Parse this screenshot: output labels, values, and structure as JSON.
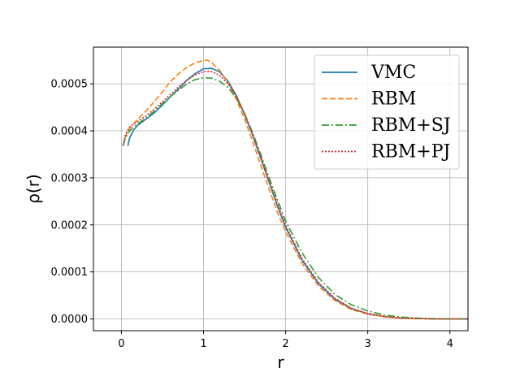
{
  "chart_data": {
    "type": "line",
    "title": "",
    "xlabel": "r",
    "ylabel": "ρ(r)",
    "xlim": [
      -0.34,
      4.22
    ],
    "ylim": [
      -2.5e-05,
      0.000578
    ],
    "xticks": [
      0,
      1,
      2,
      3,
      4
    ],
    "xtick_labels": [
      "0",
      "1",
      "2",
      "3",
      "4"
    ],
    "yticks": [
      0,
      0.0001,
      0.0002,
      0.0003,
      0.0004,
      0.0005
    ],
    "ytick_labels": [
      "0.0000",
      "0.0001",
      "0.0002",
      "0.0003",
      "0.0004",
      "0.0005"
    ],
    "grid": true,
    "legend_position": "top-right",
    "series": [
      {
        "name": "VMC",
        "color": "#1f77b4",
        "dash": "solid",
        "x": [
          0.08,
          0.1,
          0.15,
          0.2,
          0.3,
          0.4,
          0.5,
          0.6,
          0.7,
          0.8,
          0.9,
          1.0,
          1.1,
          1.2,
          1.3,
          1.4,
          1.5,
          1.6,
          1.7,
          1.8,
          1.9,
          2.0,
          2.2,
          2.4,
          2.6,
          2.8,
          3.0,
          3.2,
          3.4,
          3.6,
          3.8,
          4.0,
          4.22
        ],
        "y": [
          0.000368,
          0.000385,
          0.000402,
          0.000412,
          0.000425,
          0.000438,
          0.000455,
          0.000473,
          0.00049,
          0.000508,
          0.000522,
          0.000532,
          0.000533,
          0.000525,
          0.000505,
          0.000475,
          0.000435,
          0.00039,
          0.00034,
          0.00029,
          0.00024,
          0.000195,
          0.000125,
          7.5e-05,
          4.2e-05,
          2.2e-05,
          1.1e-05,
          5e-06,
          2e-06,
          1e-06,
          0.0,
          0.0,
          0.0
        ]
      },
      {
        "name": "RBM",
        "color": "#ff7f0e",
        "dash": "dashed",
        "x": [
          0.02,
          0.05,
          0.1,
          0.15,
          0.2,
          0.3,
          0.4,
          0.5,
          0.6,
          0.7,
          0.8,
          0.9,
          1.0,
          1.05,
          1.1,
          1.2,
          1.3,
          1.4,
          1.5,
          1.6,
          1.7,
          1.8,
          1.9,
          2.0,
          2.2,
          2.4,
          2.6,
          2.8,
          3.0,
          3.2,
          3.4,
          3.6,
          3.8,
          4.0,
          4.22
        ],
        "y": [
          0.000368,
          0.000388,
          0.000405,
          0.000415,
          0.000425,
          0.000442,
          0.000462,
          0.000483,
          0.000505,
          0.000522,
          0.000535,
          0.000545,
          0.00055,
          0.00055,
          0.000545,
          0.000528,
          0.000502,
          0.000467,
          0.000425,
          0.000377,
          0.000325,
          0.000275,
          0.000227,
          0.000185,
          0.000118,
          7e-05,
          3.9e-05,
          2e-05,
          1e-05,
          4.5e-06,
          2e-06,
          8e-07,
          0.0,
          0.0,
          0.0
        ]
      },
      {
        "name": "RBM+SJ",
        "color": "#2ca02c",
        "dash": "dashdot",
        "x": [
          0.02,
          0.05,
          0.1,
          0.15,
          0.2,
          0.3,
          0.4,
          0.5,
          0.6,
          0.7,
          0.8,
          0.9,
          1.0,
          1.1,
          1.2,
          1.3,
          1.4,
          1.5,
          1.6,
          1.7,
          1.8,
          1.9,
          2.0,
          2.2,
          2.4,
          2.6,
          2.8,
          3.0,
          3.2,
          3.4,
          3.6,
          3.8,
          4.0,
          4.22
        ],
        "y": [
          0.000368,
          0.000385,
          0.0004,
          0.000408,
          0.000415,
          0.000427,
          0.000442,
          0.000458,
          0.000473,
          0.000487,
          0.0005,
          0.000509,
          0.000513,
          0.000512,
          0.000505,
          0.000492,
          0.00047,
          0.000437,
          0.000395,
          0.000348,
          0.0003,
          0.000253,
          0.000208,
          0.00014,
          8.8e-05,
          5.2e-05,
          3e-05,
          1.7e-05,
          8.5e-06,
          4e-06,
          1.8e-06,
          7e-07,
          0.0,
          0.0
        ]
      },
      {
        "name": "RBM+PJ",
        "color": "#d62728",
        "dash": "dotted",
        "x": [
          0.02,
          0.05,
          0.1,
          0.15,
          0.2,
          0.3,
          0.4,
          0.5,
          0.6,
          0.7,
          0.8,
          0.9,
          1.0,
          1.1,
          1.2,
          1.3,
          1.4,
          1.5,
          1.6,
          1.7,
          1.8,
          1.9,
          2.0,
          2.2,
          2.4,
          2.6,
          2.8,
          3.0,
          3.2,
          3.4,
          3.6,
          3.8,
          4.0,
          4.22
        ],
        "y": [
          0.000368,
          0.000392,
          0.000408,
          0.000415,
          0.00042,
          0.000432,
          0.000446,
          0.000462,
          0.000478,
          0.000494,
          0.000508,
          0.000519,
          0.000526,
          0.000526,
          0.000518,
          0.0005,
          0.000473,
          0.000436,
          0.000392,
          0.000343,
          0.000293,
          0.000245,
          0.000199,
          0.000128,
          7.8e-05,
          4.4e-05,
          2.3e-05,
          1.15e-05,
          5.5e-06,
          2.3e-06,
          9e-07,
          0.0,
          0.0,
          0.0
        ]
      }
    ]
  }
}
